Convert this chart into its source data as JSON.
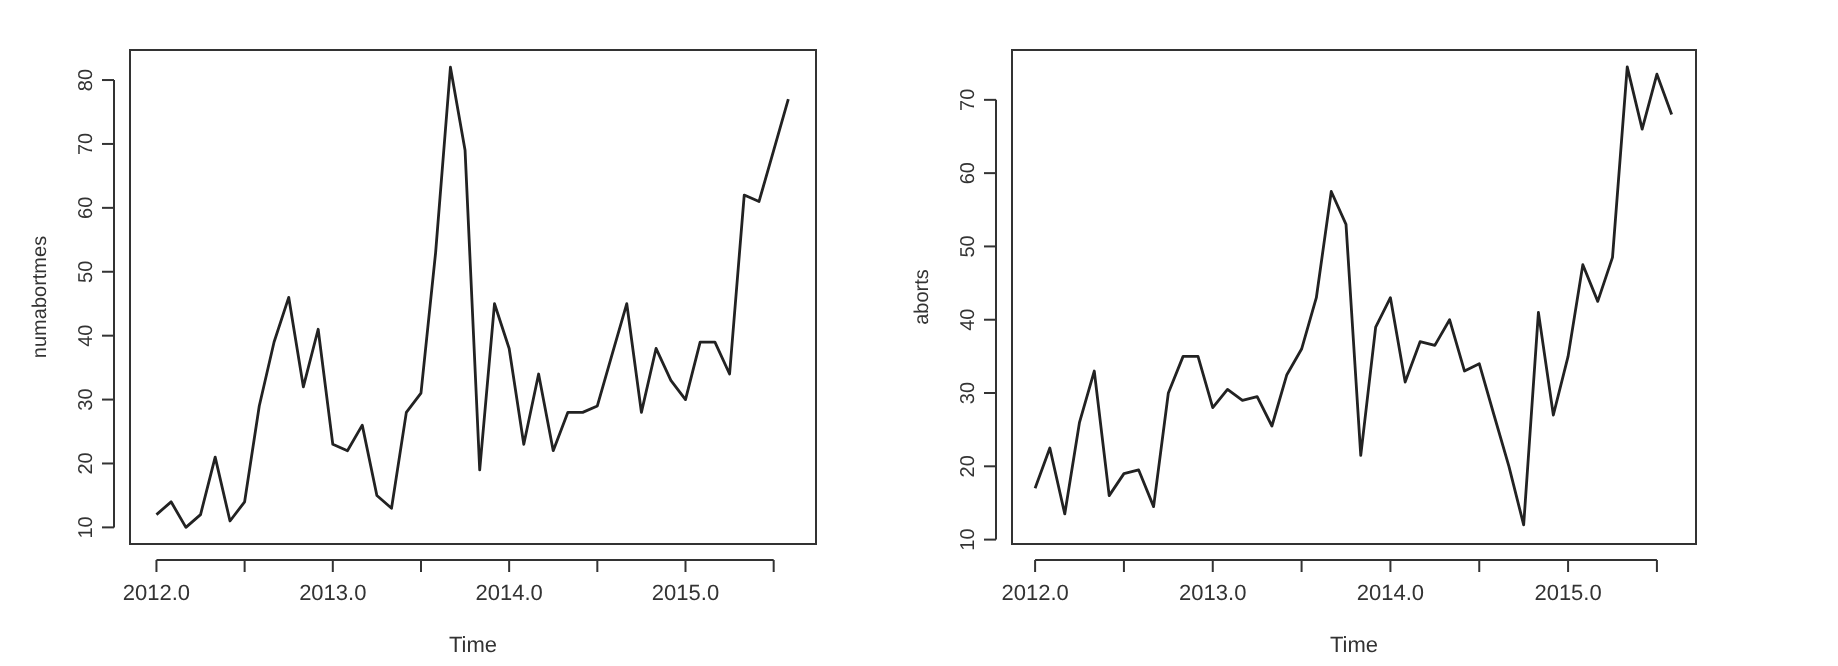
{
  "chart_data": [
    {
      "type": "line",
      "xlabel": "Time",
      "ylabel": "numabortmes",
      "grid": false,
      "marker": "none",
      "line_style": "solid",
      "x": [
        2012,
        2012.083,
        2012.167,
        2012.25,
        2012.333,
        2012.417,
        2012.5,
        2012.583,
        2012.667,
        2012.75,
        2012.833,
        2012.917,
        2013,
        2013.083,
        2013.167,
        2013.25,
        2013.333,
        2013.417,
        2013.5,
        2013.583,
        2013.667,
        2013.75,
        2013.833,
        2013.917,
        2014,
        2014.083,
        2014.167,
        2014.25,
        2014.333,
        2014.417,
        2014.5,
        2014.583,
        2014.667,
        2014.75,
        2014.833,
        2014.917,
        2015,
        2015.083,
        2015.167,
        2015.25,
        2015.333,
        2015.417,
        2015.5,
        2015.583
      ],
      "series": [
        {
          "color": "#222222",
          "values": [
            12,
            14,
            10,
            12,
            21,
            11,
            14,
            29,
            39,
            46,
            32,
            41,
            23,
            22,
            26,
            15,
            13,
            28,
            31,
            53,
            82,
            69,
            19,
            45,
            38,
            23,
            34,
            22,
            28,
            28,
            29,
            37,
            45,
            28,
            38,
            33,
            30,
            39,
            39,
            34,
            62,
            61,
            69,
            77
          ]
        }
      ],
      "xlim": [
        2011.85,
        2015.74
      ],
      "ylim": [
        7.4,
        84.7
      ],
      "xticks": [
        {
          "value": 2012,
          "label": "2012.0"
        },
        {
          "value": 2012.5,
          "label": null
        },
        {
          "value": 2013,
          "label": "2013.0"
        },
        {
          "value": 2013.5,
          "label": null
        },
        {
          "value": 2014,
          "label": "2014.0"
        },
        {
          "value": 2014.5,
          "label": null
        },
        {
          "value": 2015,
          "label": "2015.0"
        },
        {
          "value": 2015.5,
          "label": null
        }
      ],
      "yticks": [
        10,
        20,
        30,
        40,
        50,
        60,
        70,
        80
      ]
    },
    {
      "type": "line",
      "xlabel": "Time",
      "ylabel": "aborts",
      "grid": false,
      "marker": "none",
      "line_style": "solid",
      "x": [
        2012,
        2012.083,
        2012.167,
        2012.25,
        2012.333,
        2012.417,
        2012.5,
        2012.583,
        2012.667,
        2012.75,
        2012.833,
        2012.917,
        2013,
        2013.083,
        2013.167,
        2013.25,
        2013.333,
        2013.417,
        2013.5,
        2013.583,
        2013.667,
        2013.75,
        2013.833,
        2013.917,
        2014,
        2014.083,
        2014.167,
        2014.25,
        2014.333,
        2014.417,
        2014.5,
        2014.583,
        2014.667,
        2014.75,
        2014.833,
        2014.917,
        2015,
        2015.083,
        2015.167,
        2015.25,
        2015.333,
        2015.417,
        2015.5,
        2015.583
      ],
      "series": [
        {
          "color": "#222222",
          "values": [
            17,
            22.5,
            13.5,
            26,
            33,
            16,
            19,
            19.5,
            14.5,
            30,
            35,
            35,
            28,
            30.5,
            29,
            29.5,
            25.5,
            32.5,
            36,
            43,
            57.5,
            53,
            21.5,
            39,
            43,
            31.5,
            37,
            36.5,
            40,
            33,
            34,
            27,
            20,
            12,
            41,
            27,
            35,
            47.5,
            42.5,
            48.5,
            74.5,
            66,
            73.5,
            68
          ]
        }
      ],
      "xlim": [
        2011.87,
        2015.72
      ],
      "ylim": [
        9.4,
        76.8
      ],
      "xticks": [
        {
          "value": 2012,
          "label": "2012.0"
        },
        {
          "value": 2012.5,
          "label": null
        },
        {
          "value": 2013,
          "label": "2013.0"
        },
        {
          "value": 2013.5,
          "label": null
        },
        {
          "value": 2014,
          "label": "2014.0"
        },
        {
          "value": 2014.5,
          "label": null
        },
        {
          "value": 2015,
          "label": "2015.0"
        },
        {
          "value": 2015.5,
          "label": null
        }
      ],
      "yticks": [
        10,
        20,
        30,
        40,
        50,
        60,
        70
      ]
    }
  ]
}
